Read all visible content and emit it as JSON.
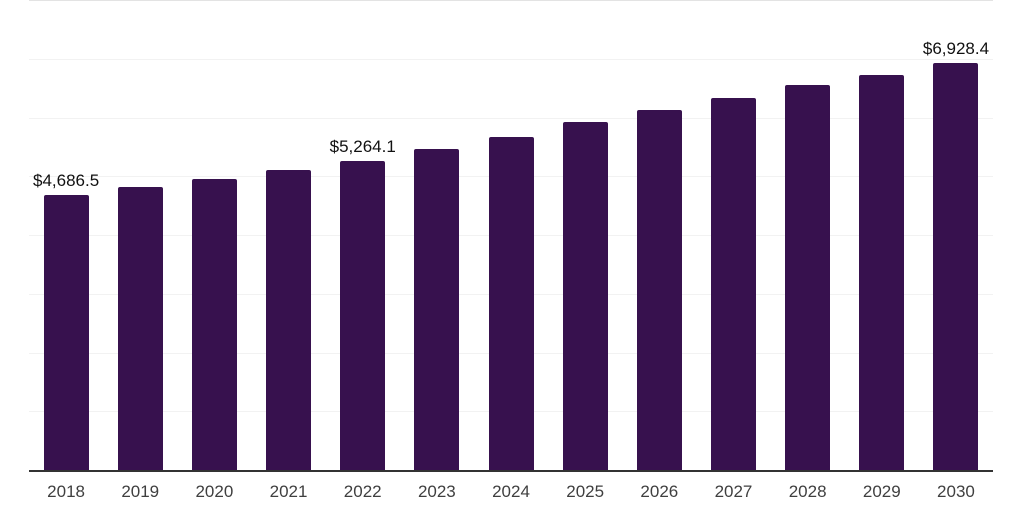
{
  "chart_data": {
    "type": "bar",
    "title": "",
    "xlabel": "",
    "ylabel": "",
    "categories": [
      "2018",
      "2019",
      "2020",
      "2021",
      "2022",
      "2023",
      "2024",
      "2025",
      "2026",
      "2027",
      "2028",
      "2029",
      "2030"
    ],
    "values": [
      4686.5,
      4810,
      4950,
      5100,
      5264.1,
      5460,
      5675,
      5930,
      6130,
      6335,
      6545,
      6730,
      6928.4
    ],
    "data_labels": [
      "$4,686.5",
      "",
      "",
      "",
      "$5,264.1",
      "",
      "",
      "",
      "",
      "",
      "",
      "",
      "$6,928.4"
    ],
    "ylim": [
      0,
      8000
    ],
    "grid_step": 1000,
    "grid": "horizontal",
    "legend": "none",
    "colors": {
      "bar": "#37114E",
      "gridline": "#f2f2f2",
      "top_gridline": "#e3e3e3",
      "axis_line": "#333333",
      "data_label": "#111111",
      "tick_label": "#3f3f3f"
    }
  }
}
